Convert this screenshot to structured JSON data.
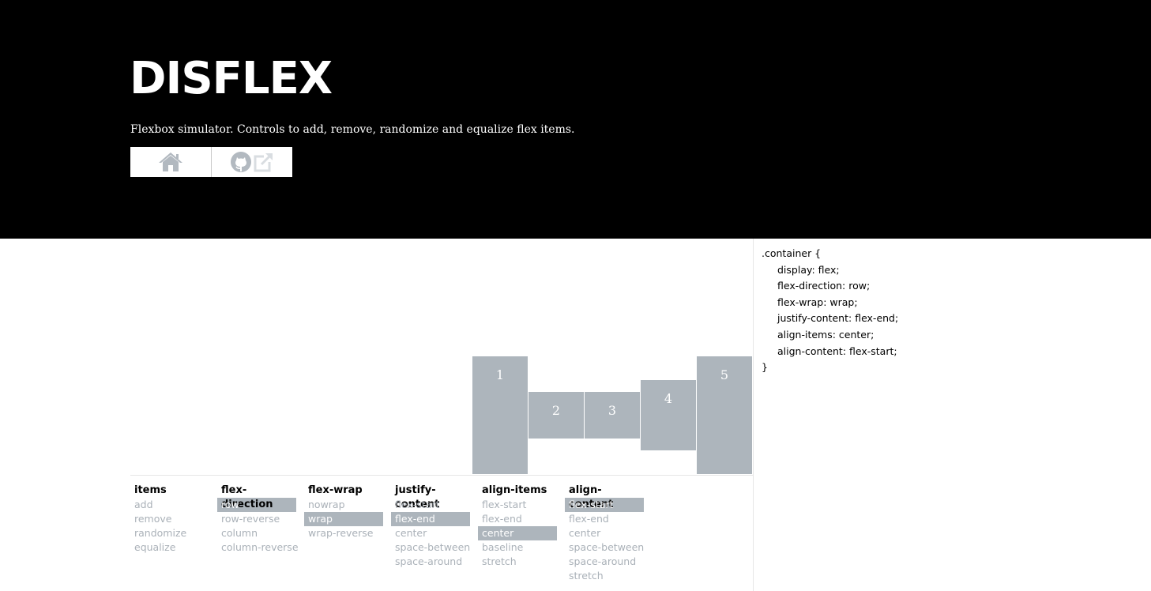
{
  "header": {
    "title": "DISFLEX",
    "subtitle": "Flexbox simulator. Controls to add, remove, randomize and equalize flex items.",
    "buttons": [
      {
        "icon": "home-icon"
      },
      {
        "icon": "github-icon",
        "secondary_icon": "external-link-icon"
      }
    ]
  },
  "flex_items": [
    "1",
    "2",
    "3",
    "4",
    "5"
  ],
  "controls": {
    "items": {
      "title": "items",
      "options": [
        "add",
        "remove",
        "randomize",
        "equalize"
      ]
    },
    "flex_direction": {
      "title": "flex-direction",
      "options": [
        "row",
        "row-reverse",
        "column",
        "column-reverse"
      ],
      "selected": "row"
    },
    "flex_wrap": {
      "title": "flex-wrap",
      "options": [
        "nowrap",
        "wrap",
        "wrap-reverse"
      ],
      "selected": "wrap"
    },
    "justify_content": {
      "title": "justify-content",
      "options": [
        "flex-start",
        "flex-end",
        "center",
        "space-between",
        "space-around"
      ],
      "selected": "flex-end"
    },
    "align_items": {
      "title": "align-items",
      "options": [
        "flex-start",
        "flex-end",
        "center",
        "baseline",
        "stretch"
      ],
      "selected": "center"
    },
    "align_content": {
      "title": "align-content",
      "options": [
        "flex-start",
        "flex-end",
        "center",
        "space-between",
        "space-around",
        "stretch"
      ],
      "selected": "flex-start"
    }
  },
  "code": {
    "selector": ".container {",
    "lines": [
      "display: flex;",
      "flex-direction: row;",
      "flex-wrap: wrap;",
      "justify-content: flex-end;",
      "align-items: center;",
      "align-content: flex-start;"
    ],
    "close": "}"
  },
  "colors": {
    "header_bg": "#000000",
    "item_bg": "#adb5bc",
    "option_text": "#aab1b8"
  }
}
